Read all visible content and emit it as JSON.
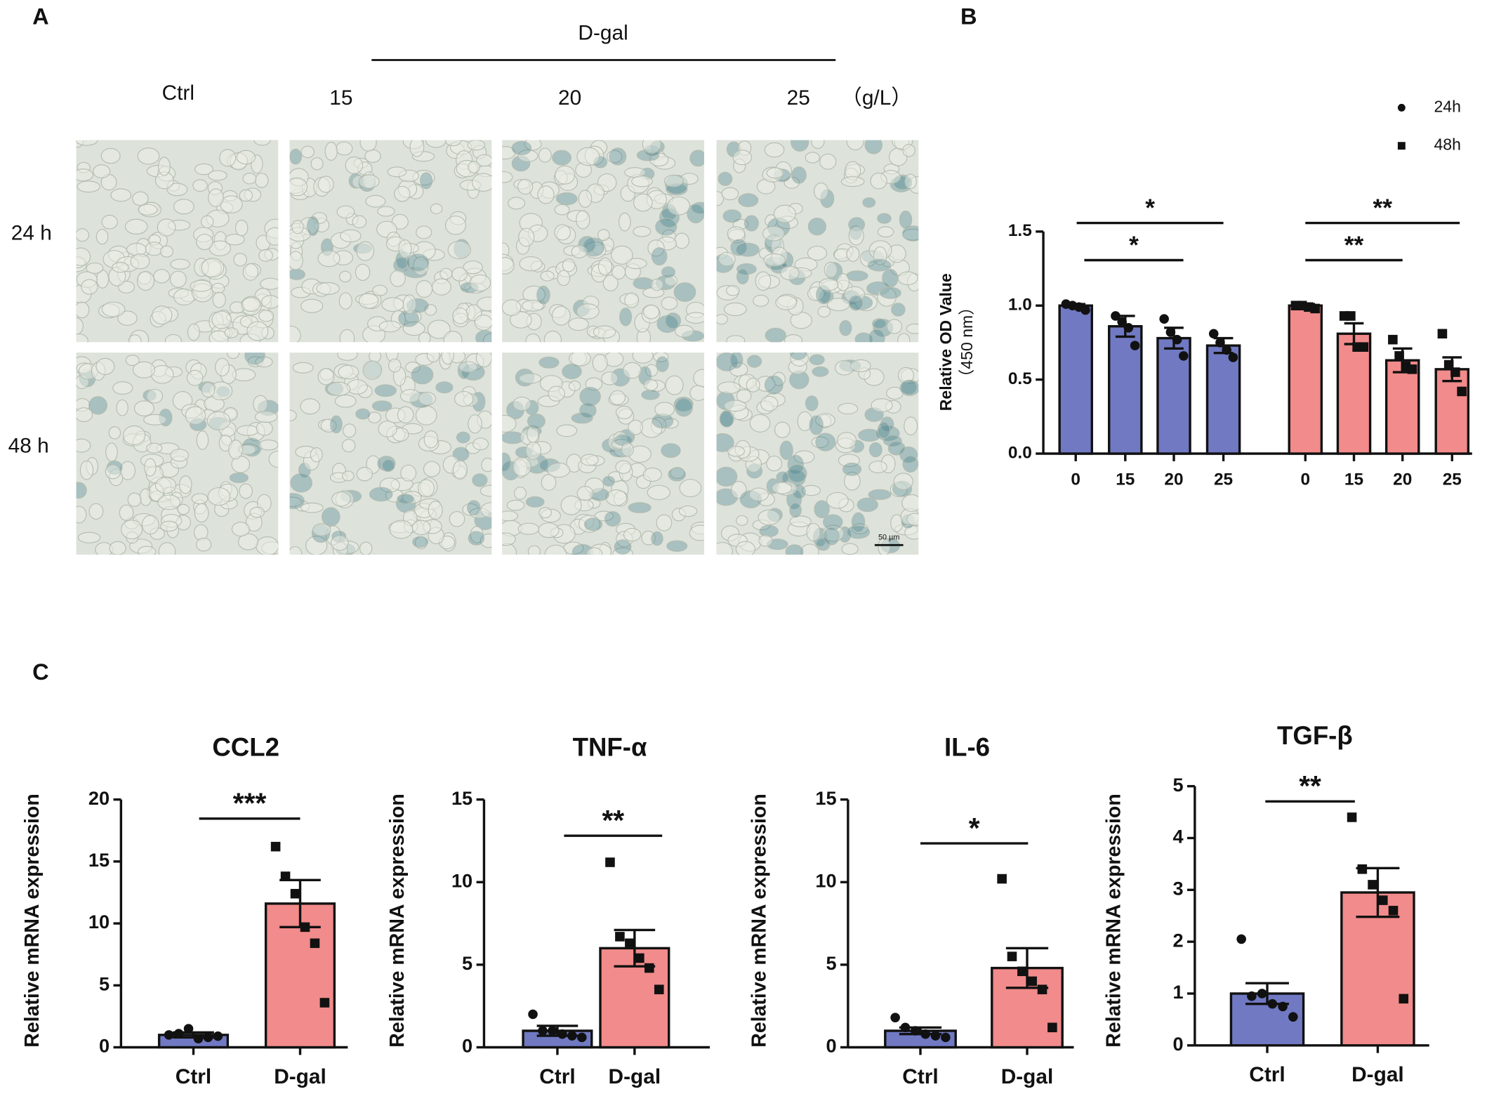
{
  "figure": {
    "panel_labels": [
      "A",
      "B",
      "C"
    ]
  },
  "panel_a": {
    "group_label": "D-gal",
    "columns": [
      "Ctrl",
      "15",
      "20",
      "25"
    ],
    "unit": "（g/L）",
    "rows": [
      "24 h",
      "48 h"
    ],
    "scale_bar": "50 µm"
  },
  "chart_data": [
    {
      "type": "bar",
      "ylabel": [
        "Relative OD Value",
        "（450 nm）"
      ],
      "categories": [
        "0",
        "15",
        "20",
        "25"
      ],
      "series": [
        {
          "name": "24h",
          "color": "#7079c2",
          "marker": "circle",
          "values": [
            1.0,
            0.86,
            0.78,
            0.73
          ],
          "errors": [
            0.01,
            0.07,
            0.07,
            0.05
          ],
          "points": [
            [
              1.01,
              1.0,
              0.99,
              0.97
            ],
            [
              0.93,
              0.89,
              0.85,
              0.73
            ],
            [
              0.91,
              0.82,
              0.77,
              0.66
            ],
            [
              0.81,
              0.75,
              0.7,
              0.65
            ]
          ]
        },
        {
          "name": "48h",
          "color": "#f28b8b",
          "marker": "square",
          "values": [
            1.0,
            0.81,
            0.63,
            0.57
          ],
          "errors": [
            0.01,
            0.07,
            0.08,
            0.08
          ],
          "points": [
            [
              1.0,
              1.0,
              0.99,
              0.98
            ],
            [
              0.93,
              0.93,
              0.72,
              0.72
            ],
            [
              0.77,
              0.66,
              0.59,
              0.57
            ],
            [
              0.81,
              0.6,
              0.55,
              0.42
            ]
          ]
        }
      ],
      "ylim": [
        0,
        1.5
      ],
      "yticks": [
        {
          "value": 0,
          "label": "0.0"
        },
        {
          "value": 0.5,
          "label": "0.5"
        },
        {
          "value": 1.0,
          "label": "1.0"
        },
        {
          "value": 1.5,
          "label": "1.5"
        }
      ],
      "annotations": [
        "*",
        "*",
        "**",
        "**"
      ],
      "legend": "upper right"
    },
    {
      "type": "bar",
      "title": "CCL2",
      "ylabel": [
        "Relative mRNA expression"
      ],
      "categories": [
        "Ctrl",
        "D-gal"
      ],
      "values": [
        1.0,
        11.6
      ],
      "errors": [
        0.2,
        1.9
      ],
      "colors": [
        "#7079c2",
        "#f28b8b"
      ],
      "markers": [
        "circle",
        "square"
      ],
      "points": [
        [
          1.0,
          1.1,
          1.5,
          0.7,
          0.8,
          0.9
        ],
        [
          16.2,
          13.8,
          12.4,
          9.7,
          8.4,
          3.6
        ]
      ],
      "ylim": [
        0,
        20
      ],
      "yticks": [
        0,
        5,
        10,
        15,
        20
      ],
      "annotations": [
        "***"
      ]
    },
    {
      "type": "bar",
      "title": "TNF-α",
      "ylabel": [
        "Relative mRNA expression"
      ],
      "categories": [
        "Ctrl",
        "D-gal"
      ],
      "values": [
        1.0,
        6.0
      ],
      "errors": [
        0.3,
        1.1
      ],
      "colors": [
        "#7079c2",
        "#f28b8b"
      ],
      "markers": [
        "circle",
        "square"
      ],
      "points": [
        [
          2.0,
          1.0,
          1.0,
          0.8,
          0.7,
          0.6
        ],
        [
          11.2,
          6.7,
          6.3,
          5.4,
          4.8,
          3.5
        ]
      ],
      "ylim": [
        0,
        15
      ],
      "yticks": [
        0,
        5,
        10,
        15
      ],
      "annotations": [
        "**"
      ]
    },
    {
      "type": "bar",
      "title": "IL-6",
      "ylabel": [
        "Relative mRNA expression"
      ],
      "categories": [
        "Ctrl",
        "D-gal"
      ],
      "values": [
        1.0,
        4.8
      ],
      "errors": [
        0.2,
        1.2
      ],
      "colors": [
        "#7079c2",
        "#f28b8b"
      ],
      "markers": [
        "circle",
        "square"
      ],
      "points": [
        [
          1.8,
          1.2,
          1.0,
          0.8,
          0.7,
          0.6
        ],
        [
          10.2,
          5.5,
          4.6,
          4.0,
          3.5,
          1.2
        ]
      ],
      "ylim": [
        0,
        15
      ],
      "yticks": [
        0,
        5,
        10,
        15
      ],
      "annotations": [
        "*"
      ]
    },
    {
      "type": "bar",
      "title": "TGF-β",
      "ylabel": [
        "Relative mRNA expression"
      ],
      "categories": [
        "Ctrl",
        "D-gal"
      ],
      "values": [
        1.0,
        2.95
      ],
      "errors": [
        0.2,
        0.47
      ],
      "colors": [
        "#7079c2",
        "#f28b8b"
      ],
      "markers": [
        "circle",
        "square"
      ],
      "points": [
        [
          2.05,
          0.95,
          1.0,
          0.8,
          0.75,
          0.55
        ],
        [
          4.4,
          3.4,
          3.1,
          2.8,
          2.6,
          0.9
        ]
      ],
      "ylim": [
        0,
        5
      ],
      "yticks": [
        0,
        1,
        2,
        3,
        4,
        5
      ],
      "annotations": [
        "**"
      ]
    }
  ]
}
